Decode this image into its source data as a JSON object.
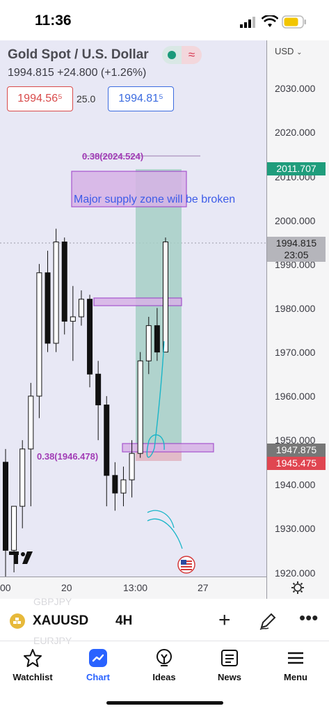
{
  "status_bar": {
    "time": "11:36"
  },
  "symbol": {
    "title": "Gold Spot / U.S. Dollar",
    "price_line": "1994.815  +24.800 (+1.26%)",
    "bid": "1994.56⁵",
    "spread": "25.0",
    "ask": "1994.81⁵",
    "currency": "USD"
  },
  "price_axis": {
    "ticks": [
      "2030.000",
      "2020.000",
      "2010.000",
      "2000.000",
      "1990.000",
      "1980.000",
      "1970.000",
      "1960.000",
      "1950.000",
      "1940.000",
      "1930.000",
      "1920.000"
    ],
    "tags": {
      "target": "2011.707",
      "current": "1994.815",
      "countdown": "23:05",
      "entry": "1947.875",
      "stop": "1945.475"
    }
  },
  "time_axis": {
    "labels": [
      "00",
      "20",
      "13:00",
      "27"
    ]
  },
  "annotations": {
    "supply_text": "Major supply zone will be broken",
    "fib_top": "0.38(2024.524)",
    "fib_bottom": "0.38(1946.478)"
  },
  "bottom_toolbar": {
    "symbol": "XAUUSD",
    "interval": "4H",
    "ghost_above": "GBPJPY",
    "ghost_below": "EURJPY"
  },
  "nav": [
    {
      "label": "Watchlist",
      "icon": "star-icon"
    },
    {
      "label": "Chart",
      "icon": "chart-icon"
    },
    {
      "label": "Ideas",
      "icon": "ideas-icon"
    },
    {
      "label": "News",
      "icon": "news-icon"
    },
    {
      "label": "Menu",
      "icon": "menu-icon"
    }
  ],
  "chart_data": {
    "type": "candlestick",
    "ylim": [
      1920,
      2035
    ],
    "x_ticks": [
      "00",
      "20",
      "13:00",
      "27"
    ],
    "approx_candles": [
      {
        "o": 1945,
        "h": 1948,
        "c": 1925,
        "l": 1918
      },
      {
        "o": 1925,
        "h": 1935,
        "c": 1935,
        "l": 1920
      },
      {
        "o": 1935,
        "h": 1950,
        "c": 1948,
        "l": 1930
      },
      {
        "o": 1948,
        "h": 1963,
        "c": 1960,
        "l": 1935
      },
      {
        "o": 1960,
        "h": 1990,
        "c": 1988,
        "l": 1955
      },
      {
        "o": 1988,
        "h": 1993,
        "c": 1972,
        "l": 1970
      },
      {
        "o": 1972,
        "h": 1998,
        "c": 1995,
        "l": 1970
      },
      {
        "o": 1995,
        "h": 1996,
        "c": 1977,
        "l": 1974
      },
      {
        "o": 1977,
        "h": 1985,
        "c": 1978,
        "l": 1968
      },
      {
        "o": 1978,
        "h": 1984,
        "c": 1982,
        "l": 1976
      },
      {
        "o": 1982,
        "h": 1983,
        "c": 1965,
        "l": 1962
      },
      {
        "o": 1965,
        "h": 1968,
        "c": 1958,
        "l": 1950
      },
      {
        "o": 1958,
        "h": 1960,
        "c": 1942,
        "l": 1935
      },
      {
        "o": 1942,
        "h": 1945,
        "c": 1938,
        "l": 1934
      },
      {
        "o": 1938,
        "h": 1944,
        "c": 1941,
        "l": 1935
      },
      {
        "o": 1941,
        "h": 1950,
        "c": 1947,
        "l": 1937
      },
      {
        "o": 1947,
        "h": 1970,
        "c": 1968,
        "l": 1946
      },
      {
        "o": 1968,
        "h": 1978,
        "c": 1976,
        "l": 1965
      },
      {
        "o": 1976,
        "h": 1980,
        "c": 1970,
        "l": 1968
      },
      {
        "o": 1970,
        "h": 1996,
        "c": 1995,
        "l": 1970
      }
    ]
  }
}
